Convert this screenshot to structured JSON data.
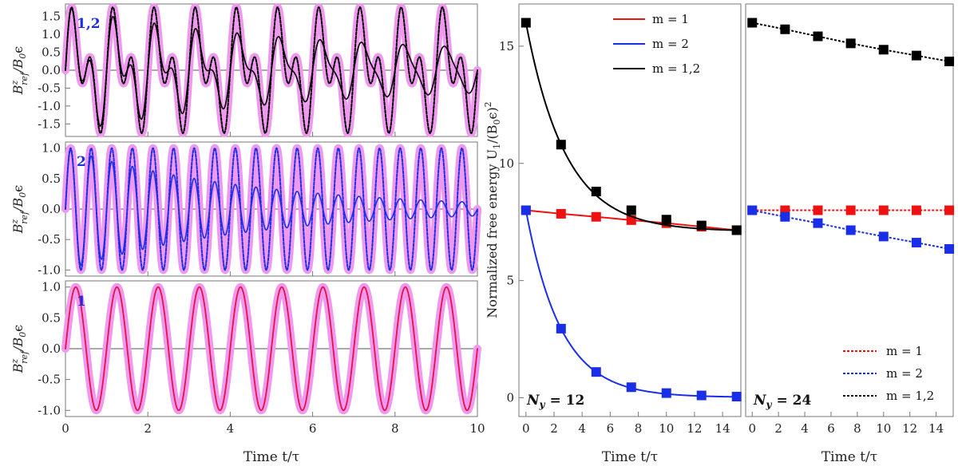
{
  "colors": {
    "red": "#ee1111",
    "blue": "#1a2ee8",
    "black": "#000000",
    "pink": "#ee99ee",
    "crimson": "#e8104a"
  },
  "left_ylabel_main": "B",
  "left_ylabel_sup": "z",
  "left_ylabel_sub": "ref",
  "left_ylabel_den": "/B",
  "left_ylabel_den_sub": "0",
  "left_ylabel_eps": "ϵ",
  "left_xlabel": "Time t/τ",
  "mid_ylabel": "Normalized free energy U",
  "mid_ylabel_sub": "1",
  "mid_ylabel_tail": "/(B",
  "mid_ylabel_tail_sub": "0",
  "mid_ylabel_tail2": "ϵ)",
  "mid_ylabel_sup": "2",
  "mid_xlabel": "Time t/τ",
  "right_xlabel": "Time t/τ",
  "chart_data": [
    {
      "type": "line",
      "panel_label": "1,2",
      "xlim": [
        0,
        10
      ],
      "ylim": [
        -1.85,
        1.85
      ],
      "yticks": [
        "-1.5",
        "-1.0",
        "-0.5",
        "0.0",
        "0.5",
        "1.0",
        "1.5"
      ],
      "ytick_values": [
        -1.5,
        -1.0,
        -0.5,
        0.0,
        0.5,
        1.0,
        1.5
      ],
      "xticks": [
        0,
        2,
        4,
        6,
        8,
        10
      ],
      "series": [
        {
          "style": "thick-pink",
          "formula": "sin(2πt)+sin(4πt)"
        },
        {
          "style": "dotted-black",
          "formula": "sin(2πt)+sin(4πt)"
        },
        {
          "style": "solid-black",
          "formula": "0.95^t·sin(2πt)+0.8^t·sin(4πt)"
        }
      ]
    },
    {
      "type": "line",
      "panel_label": "2",
      "xlim": [
        0,
        10
      ],
      "ylim": [
        -1.1,
        1.1
      ],
      "yticks": [
        "-1.0",
        "-0.5",
        "0.0",
        "0.5",
        "1.0"
      ],
      "ytick_values": [
        -1.0,
        -0.5,
        0.0,
        0.5,
        1.0
      ],
      "xticks": [
        0,
        2,
        4,
        6,
        8,
        10
      ],
      "series": [
        {
          "style": "thick-pink",
          "formula": "sin(4πt)"
        },
        {
          "style": "dotted-blue",
          "formula": "sin(4πt)"
        },
        {
          "style": "solid-blue",
          "formula": "e^(-0.22t)·sin(4πt)"
        }
      ]
    },
    {
      "type": "line",
      "panel_label": "1",
      "xlim": [
        0,
        10
      ],
      "ylim": [
        -1.1,
        1.1
      ],
      "yticks": [
        "-1.0",
        "-0.5",
        "0.0",
        "0.5",
        "1.0"
      ],
      "ytick_values": [
        -1.0,
        -0.5,
        0.0,
        0.5,
        1.0
      ],
      "xticks": [
        0,
        2,
        4,
        6,
        8,
        10
      ],
      "series": [
        {
          "style": "thick-pink",
          "formula": "sin(2πt)"
        },
        {
          "style": "solid-crimson",
          "formula": "sin(2πt)"
        }
      ]
    },
    {
      "type": "scatter",
      "panel_label_main": "N",
      "panel_label_sub": "y",
      "panel_label_val": " = 12",
      "xlim": [
        -0.5,
        15.3
      ],
      "ylim": [
        -0.8,
        16.8
      ],
      "xticks": [
        0,
        2,
        4,
        6,
        8,
        10,
        12,
        14
      ],
      "yticks": [
        "0",
        "5",
        "10",
        "15"
      ],
      "ytick_values": [
        0,
        5,
        10,
        15
      ],
      "x": [
        0,
        2.5,
        5,
        7.5,
        10,
        12.5,
        15
      ],
      "series": [
        {
          "name": "m = 1",
          "color": "red",
          "curve": "linear",
          "values": [
            8.0,
            7.85,
            7.72,
            7.58,
            7.45,
            7.3,
            7.15
          ]
        },
        {
          "name": "m = 2",
          "color": "blue",
          "curve": "exp",
          "values": [
            8.0,
            2.95,
            1.1,
            0.45,
            0.2,
            0.1,
            0.05
          ]
        },
        {
          "name": "m = 1,2",
          "color": "black",
          "curve": "exp",
          "values": [
            16.0,
            10.8,
            8.8,
            8.0,
            7.6,
            7.35,
            7.15
          ]
        }
      ]
    },
    {
      "type": "scatter",
      "panel_label_main": "N",
      "panel_label_sub": "y",
      "panel_label_val": " = 24",
      "xlim": [
        -0.5,
        15.3
      ],
      "ylim": [
        -0.8,
        16.8
      ],
      "xticks": [
        0,
        2,
        4,
        6,
        8,
        10,
        12,
        14
      ],
      "x": [
        0,
        2.5,
        5,
        7.5,
        10,
        12.5,
        15
      ],
      "series": [
        {
          "name": "m = 1",
          "color": "red",
          "curve": "linear",
          "values": [
            8.0,
            8.0,
            8.0,
            8.0,
            8.0,
            8.0,
            8.0
          ]
        },
        {
          "name": "m = 2",
          "color": "blue",
          "curve": "linear",
          "values": [
            8.0,
            7.72,
            7.45,
            7.15,
            6.88,
            6.62,
            6.35
          ]
        },
        {
          "name": "m = 1,2",
          "color": "black",
          "curve": "linear",
          "values": [
            16.0,
            15.72,
            15.42,
            15.12,
            14.85,
            14.6,
            14.35
          ]
        }
      ]
    }
  ]
}
